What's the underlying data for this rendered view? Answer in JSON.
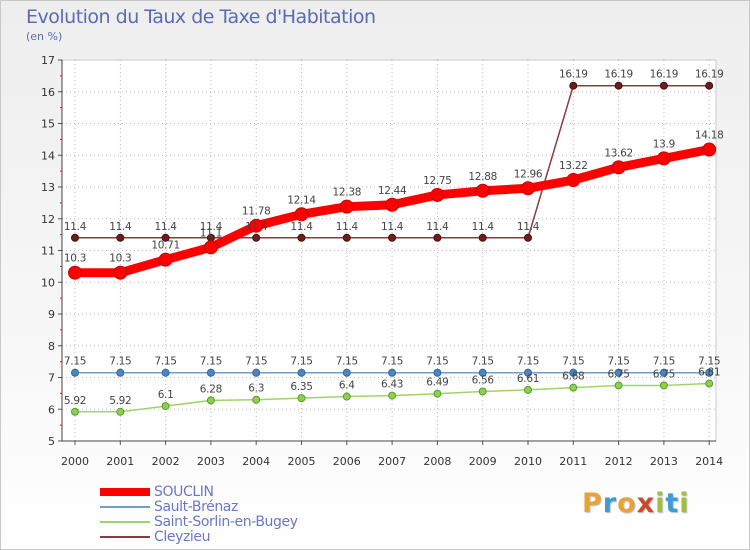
{
  "header": {
    "title": "Evolution du Taux de Taxe d'Habitation",
    "subtitle": "(en %)"
  },
  "logo": {
    "letters": [
      "P",
      "r",
      "o",
      "x",
      "i",
      "t",
      "i"
    ],
    "colors": [
      "#e8a23a",
      "#3e9bd5",
      "#e8a23a",
      "#c84a2c",
      "#9ec13c",
      "#3e9bd5",
      "#9ec13c"
    ]
  },
  "chart_data": {
    "type": "line",
    "x": [
      "2000",
      "2001",
      "2002",
      "2003",
      "2004",
      "2005",
      "2006",
      "2007",
      "2008",
      "2009",
      "2010",
      "2011",
      "2012",
      "2013",
      "2014"
    ],
    "ylim": [
      5,
      17
    ],
    "yticks": [
      "5",
      "6",
      "7",
      "8",
      "9",
      "10",
      "11",
      "12",
      "13",
      "14",
      "15",
      "16",
      "17"
    ],
    "grid": true,
    "legend_position": "bottom-left",
    "series": [
      {
        "name": "SOUCLIN",
        "color": "#ff0000",
        "values": [
          10.3,
          10.3,
          10.71,
          11.1,
          11.78,
          12.14,
          12.38,
          12.44,
          12.75,
          12.88,
          12.96,
          13.22,
          13.62,
          13.9,
          14.18
        ],
        "labels": [
          "10.3",
          "10.3",
          "10.71",
          "11.1",
          "11.78",
          "12.14",
          "12.38",
          "12.44",
          "12.75",
          "12.88",
          "12.96",
          "13.22",
          "13.62",
          "13.9",
          "14.18"
        ]
      },
      {
        "name": "Sault-Brénaz",
        "color": "#6f9fc8",
        "values": [
          7.15,
          7.15,
          7.15,
          7.15,
          7.15,
          7.15,
          7.15,
          7.15,
          7.15,
          7.15,
          7.15,
          7.15,
          7.15,
          7.15,
          7.15
        ],
        "labels": [
          "7.15",
          "7.15",
          "7.15",
          "7.15",
          "7.15",
          "7.15",
          "7.15",
          "7.15",
          "7.15",
          "7.15",
          "7.15",
          "7.15",
          "7.15",
          "7.15",
          "7.15"
        ]
      },
      {
        "name": "Saint-Sorlin-en-Bugey",
        "color": "#9ed36a",
        "values": [
          5.92,
          5.92,
          6.1,
          6.28,
          6.3,
          6.35,
          6.4,
          6.43,
          6.49,
          6.56,
          6.61,
          6.68,
          6.75,
          6.75,
          6.81
        ],
        "labels": [
          "5.92",
          "5.92",
          "6.1",
          "6.28",
          "6.3",
          "6.35",
          "6.4",
          "6.43",
          "6.49",
          "6.56",
          "6.61",
          "6.68",
          "6.75",
          "6.75",
          "6.81"
        ]
      },
      {
        "name": "Cleyzieu",
        "color": "#8a3b3b",
        "values": [
          11.4,
          11.4,
          11.4,
          11.4,
          11.4,
          11.4,
          11.4,
          11.4,
          11.4,
          11.4,
          11.4,
          16.19,
          16.19,
          16.19,
          16.19
        ],
        "labels": [
          "11.4",
          "11.4",
          "11.4",
          "11.4",
          "11.4",
          "11.4",
          "11.4",
          "11.4",
          "11.4",
          "11.4",
          "11.4",
          "16.19",
          "16.19",
          "16.19",
          "16.19"
        ]
      }
    ]
  }
}
